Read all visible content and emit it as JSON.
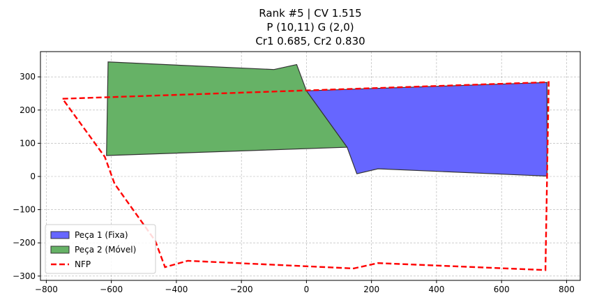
{
  "chart_data": {
    "type": "area",
    "title_lines": [
      "Rank #5 | CV 1.515",
      "P (10,11) G (2,0)",
      "Cr1 0.685, Cr2 0.830"
    ],
    "xlabel": "",
    "ylabel": "",
    "xlim": [
      -818,
      842
    ],
    "ylim": [
      -313,
      376
    ],
    "xticks": [
      -800,
      -600,
      -400,
      -200,
      0,
      200,
      400,
      600,
      800
    ],
    "yticks": [
      -300,
      -200,
      -100,
      0,
      100,
      200,
      300
    ],
    "grid": true,
    "legend_position": "lower-left",
    "series": [
      {
        "name": "Peça 1 (Fixa)",
        "kind": "polygon",
        "fill": "#6666ff",
        "edge": "#333333",
        "points": [
          [
            0,
            258
          ],
          [
            740,
            283
          ],
          [
            740,
            1
          ],
          [
            220,
            23
          ],
          [
            155,
            8
          ],
          [
            125,
            88
          ],
          [
            0,
            258
          ]
        ]
      },
      {
        "name": "Peça 2 (Móvel)",
        "kind": "polygon",
        "fill": "#66b266",
        "edge": "#333333",
        "points": [
          [
            -615,
            63
          ],
          [
            125,
            88
          ],
          [
            0,
            258
          ],
          [
            -30,
            337
          ],
          [
            -100,
            322
          ],
          [
            -610,
            345
          ],
          [
            -615,
            63
          ]
        ]
      },
      {
        "name": "NFP",
        "kind": "line",
        "color": "#ff0000",
        "dash": true,
        "points": [
          [
            -750,
            234
          ],
          [
            745,
            284
          ],
          [
            735,
            -282
          ],
          [
            220,
            -261
          ],
          [
            145,
            -277
          ],
          [
            -365,
            -254
          ],
          [
            -435,
            -273
          ],
          [
            -465,
            -194
          ],
          [
            -590,
            -22
          ],
          [
            -620,
            59
          ],
          [
            -750,
            234
          ]
        ]
      }
    ]
  }
}
